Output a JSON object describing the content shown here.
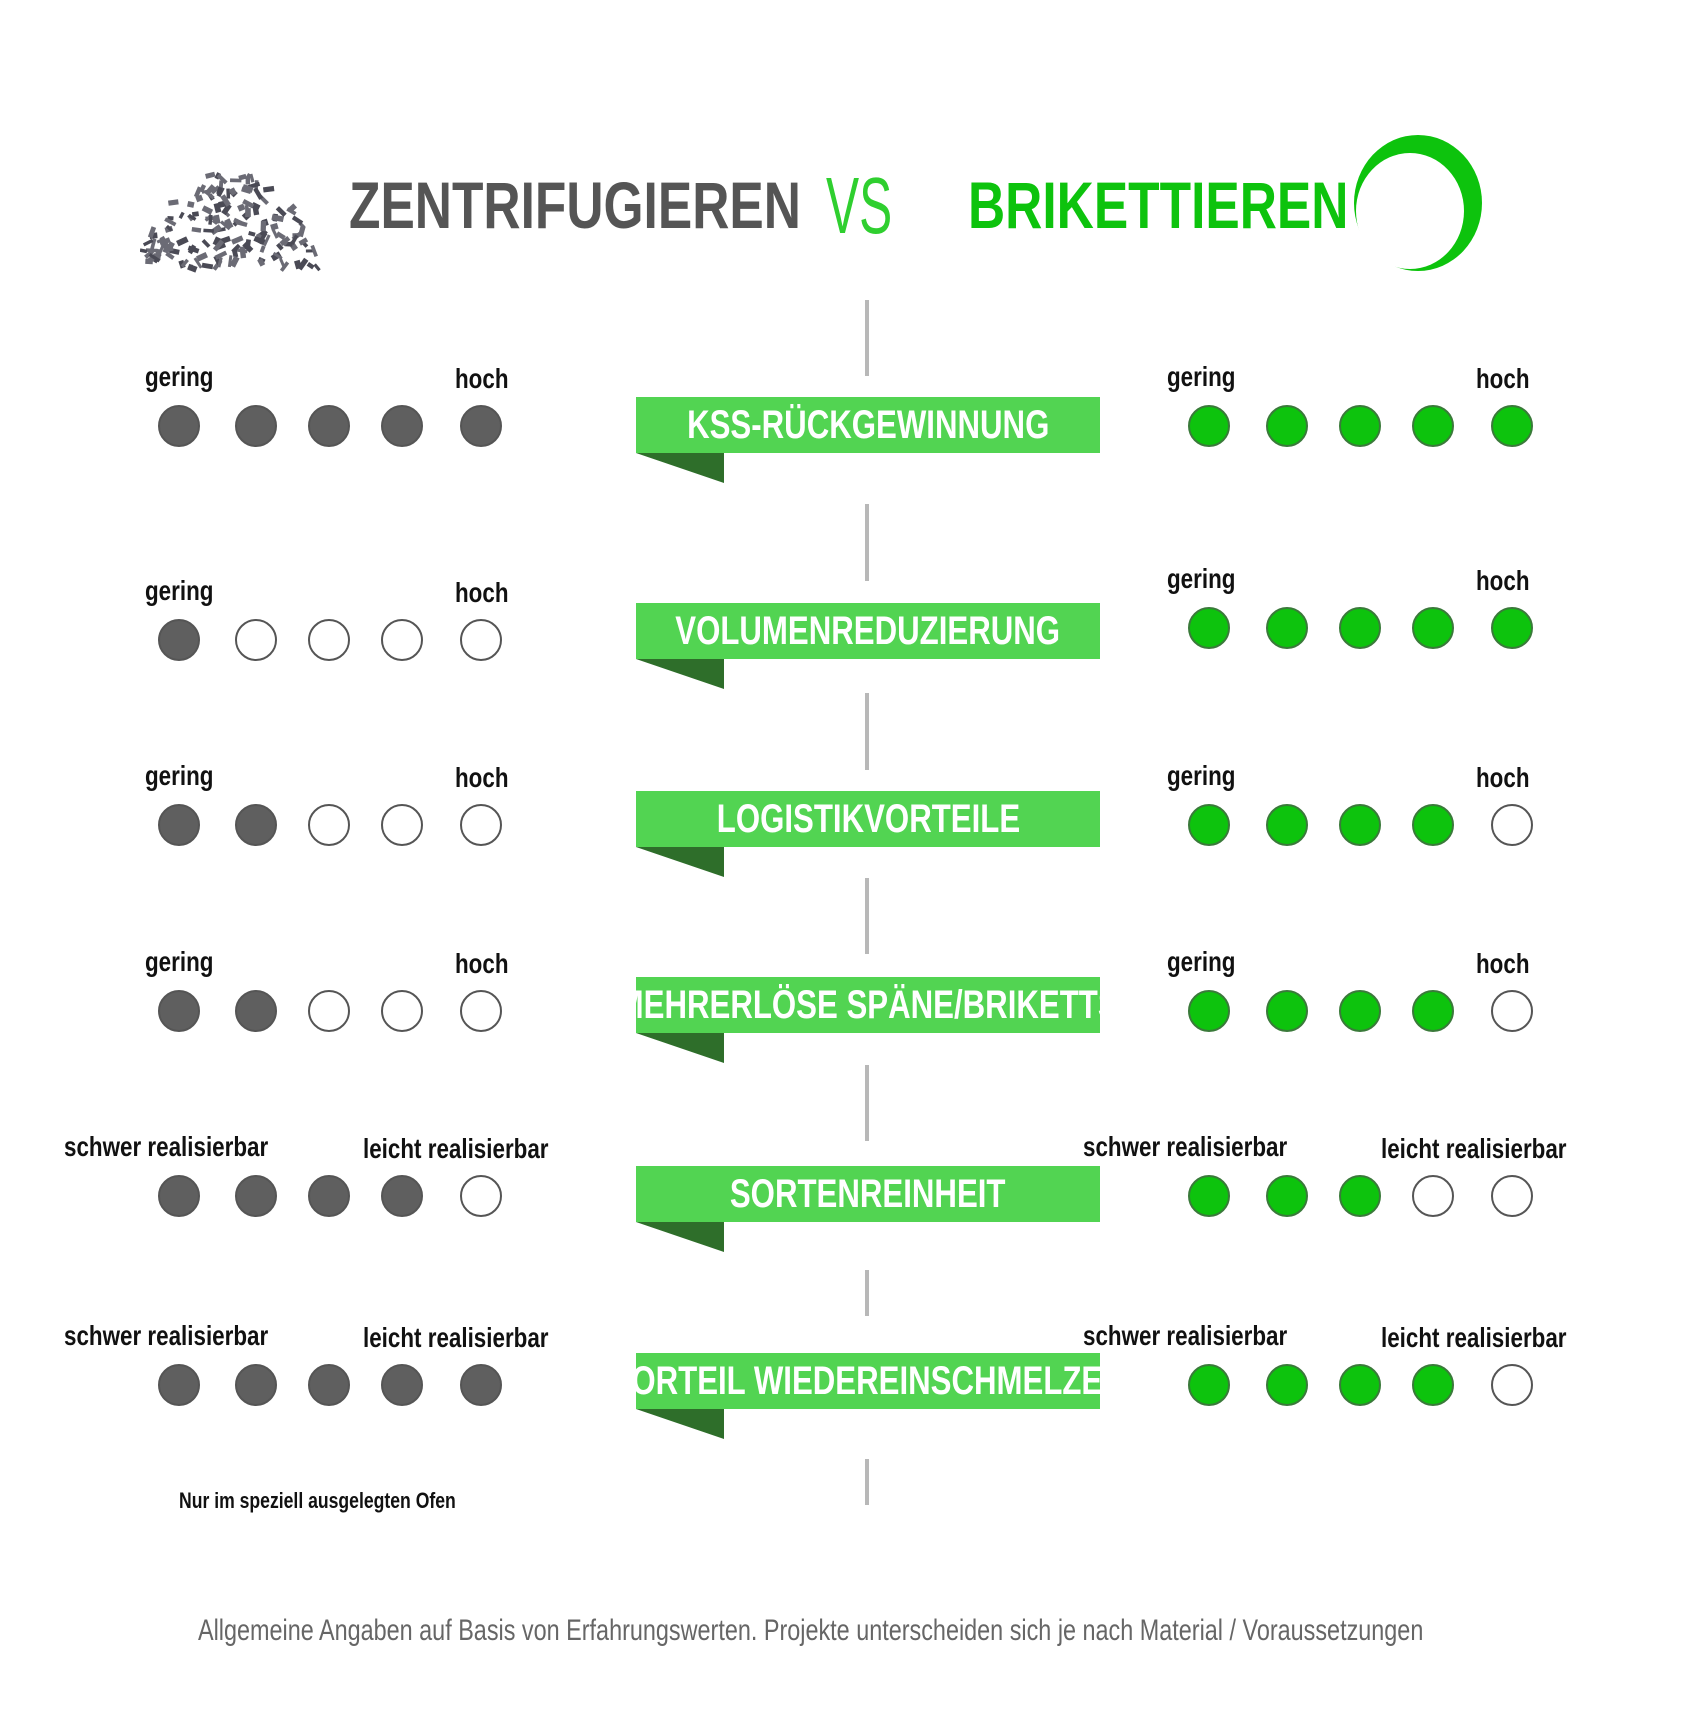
{
  "header": {
    "left_title": "ZENTRIFUGIEREN",
    "vs": "VS",
    "right_title": "BRIKETTIEREN",
    "left_icon": "chips-pile-icon",
    "right_icon": "briquette-ring-icon"
  },
  "colors": {
    "gray": "#5f5f5f",
    "green": "#0dc30d",
    "banner_green": "#52d452",
    "banner_tail": "#2e6e2a",
    "title_gray": "#555555",
    "title_green": "#0dc30d"
  },
  "scale_max": 5,
  "rows": [
    {
      "category": "KSS-RÜCKGEWINNUNG",
      "low_label": "gering",
      "high_label": "hoch",
      "zentrifugieren": 5,
      "brikettieren": 5
    },
    {
      "category": "VOLUMENREDUZIERUNG",
      "low_label": "gering",
      "high_label": "hoch",
      "zentrifugieren": 1,
      "brikettieren": 5
    },
    {
      "category": "LOGISTIKVORTEILE",
      "low_label": "gering",
      "high_label": "hoch",
      "zentrifugieren": 2,
      "brikettieren": 4
    },
    {
      "category": "MEHRERLÖSE SPÄNE/BRIKETTS",
      "low_label": "gering",
      "high_label": "hoch",
      "zentrifugieren": 2,
      "brikettieren": 4
    },
    {
      "category": "SORTENREINHEIT",
      "low_label": "schwer realisierbar",
      "high_label": "leicht realisierbar",
      "zentrifugieren": 4,
      "brikettieren": 3
    },
    {
      "category": "VORTEIL WIEDEREINSCHMELZEN",
      "low_label": "schwer realisierbar",
      "high_label": "leicht realisierbar",
      "zentrifugieren": 5,
      "brikettieren": 4
    }
  ],
  "note": "Nur im speziell ausgelegten Ofen",
  "footer": "Allgemeine Angaben auf Basis von Erfahrungswerten. Projekte unterscheiden sich je nach Material / Voraussetzungen"
}
